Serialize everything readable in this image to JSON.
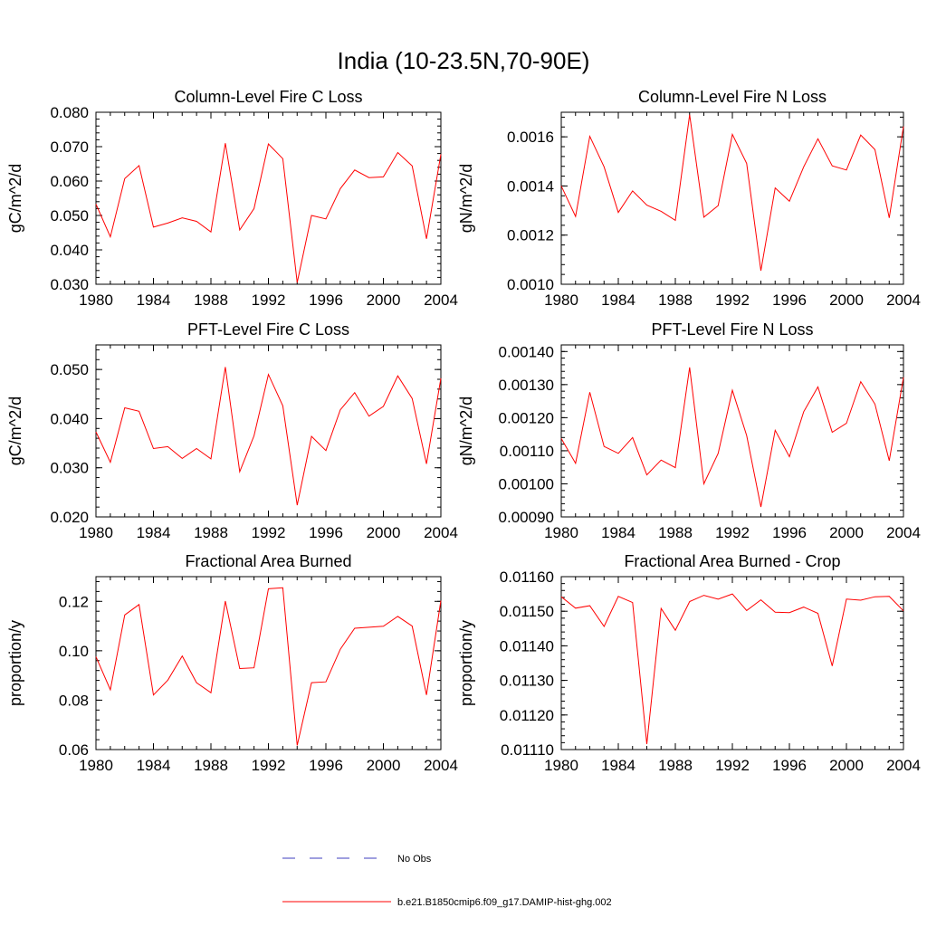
{
  "figure": {
    "title": "India (10-23.5N,70-90E)"
  },
  "legend": {
    "entries": [
      {
        "label": "No Obs",
        "color": "#3f3fbf",
        "style": "dashed"
      },
      {
        "label": "b.e21.B1850cmip6.f09_g17.DAMIP-hist-ghg.002",
        "color": "#ff0000",
        "style": "solid"
      }
    ]
  },
  "colors": {
    "series": "#ff0000",
    "axes": "#000000",
    "background": "#ffffff"
  },
  "chart_data": [
    {
      "type": "line",
      "title": "Column-Level Fire C Loss",
      "xlabel": "",
      "ylabel": "gC/m^2/d",
      "xlim": [
        1980,
        2004
      ],
      "ylim": [
        0.03,
        0.08
      ],
      "xticks": [
        1980,
        1984,
        1988,
        1992,
        1996,
        2000,
        2004
      ],
      "xtick_labels": [
        "1980",
        "1984",
        "1988",
        "1992",
        "1996",
        "2000",
        "2004"
      ],
      "yticks": [
        0.03,
        0.04,
        0.05,
        0.06,
        0.07,
        0.08
      ],
      "ytick_labels": [
        "0.030",
        "0.040",
        "0.050",
        "0.060",
        "0.070",
        "0.080"
      ],
      "grid": false,
      "x": [
        1980,
        1981,
        1982,
        1983,
        1984,
        1985,
        1986,
        1987,
        1988,
        1989,
        1990,
        1991,
        1992,
        1993,
        1994,
        1995,
        1996,
        1997,
        1998,
        1999,
        2000,
        2001,
        2002,
        2003,
        2004
      ],
      "series": [
        {
          "values": [
            0.0533,
            0.0438,
            0.0607,
            0.0645,
            0.0466,
            0.0478,
            0.0493,
            0.0483,
            0.0452,
            0.071,
            0.0458,
            0.052,
            0.0708,
            0.0665,
            0.0305,
            0.05,
            0.049,
            0.0578,
            0.0632,
            0.061,
            0.0612,
            0.0683,
            0.0644,
            0.0432,
            0.0678
          ]
        }
      ]
    },
    {
      "type": "line",
      "title": "Column-Level Fire N Loss",
      "xlabel": "",
      "ylabel": "gN/m^2/d",
      "xlim": [
        1980,
        2004
      ],
      "ylim": [
        0.001,
        0.0017
      ],
      "xticks": [
        1980,
        1984,
        1988,
        1992,
        1996,
        2000,
        2004
      ],
      "xtick_labels": [
        "1980",
        "1984",
        "1988",
        "1992",
        "1996",
        "2000",
        "2004"
      ],
      "yticks": [
        0.001,
        0.0012,
        0.0014,
        0.0016
      ],
      "ytick_labels": [
        "0.0010",
        "0.0012",
        "0.0014",
        "0.0016"
      ],
      "grid": false,
      "x": [
        1980,
        1981,
        1982,
        1983,
        1984,
        1985,
        1986,
        1987,
        1988,
        1989,
        1990,
        1991,
        1992,
        1993,
        1994,
        1995,
        1996,
        1997,
        1998,
        1999,
        2000,
        2001,
        2002,
        2003,
        2004
      ],
      "series": [
        {
          "values": [
            0.0014,
            0.001276,
            0.001602,
            0.001478,
            0.001292,
            0.00138,
            0.001322,
            0.001297,
            0.00126,
            0.00169,
            0.001273,
            0.00132,
            0.00161,
            0.001492,
            0.001055,
            0.001392,
            0.001338,
            0.001478,
            0.001592,
            0.001482,
            0.001465,
            0.001607,
            0.001548,
            0.00127,
            0.001642
          ]
        }
      ]
    },
    {
      "type": "line",
      "title": "PFT-Level Fire C Loss",
      "xlabel": "",
      "ylabel": "gC/m^2/d",
      "xlim": [
        1980,
        2004
      ],
      "ylim": [
        0.02,
        0.055
      ],
      "xticks": [
        1980,
        1984,
        1988,
        1992,
        1996,
        2000,
        2004
      ],
      "xtick_labels": [
        "1980",
        "1984",
        "1988",
        "1992",
        "1996",
        "2000",
        "2004"
      ],
      "yticks": [
        0.02,
        0.03,
        0.04,
        0.05
      ],
      "ytick_labels": [
        "0.020",
        "0.030",
        "0.040",
        "0.050"
      ],
      "grid": false,
      "x": [
        1980,
        1981,
        1982,
        1983,
        1984,
        1985,
        1986,
        1987,
        1988,
        1989,
        1990,
        1991,
        1992,
        1993,
        1994,
        1995,
        1996,
        1997,
        1998,
        1999,
        2000,
        2001,
        2002,
        2003,
        2004
      ],
      "series": [
        {
          "values": [
            0.0373,
            0.0311,
            0.0422,
            0.0415,
            0.0339,
            0.0343,
            0.0319,
            0.0339,
            0.0318,
            0.0505,
            0.0292,
            0.0365,
            0.049,
            0.0426,
            0.0224,
            0.0364,
            0.0335,
            0.0418,
            0.0453,
            0.0405,
            0.0425,
            0.0487,
            0.0441,
            0.0308,
            0.0482
          ]
        }
      ]
    },
    {
      "type": "line",
      "title": "PFT-Level Fire N Loss",
      "xlabel": "",
      "ylabel": "gN/m^2/d",
      "xlim": [
        1980,
        2004
      ],
      "ylim": [
        0.0009,
        0.00142
      ],
      "xticks": [
        1980,
        1984,
        1988,
        1992,
        1996,
        2000,
        2004
      ],
      "xtick_labels": [
        "1980",
        "1984",
        "1988",
        "1992",
        "1996",
        "2000",
        "2004"
      ],
      "yticks": [
        0.0009,
        0.001,
        0.0011,
        0.0012,
        0.0013,
        0.0014
      ],
      "ytick_labels": [
        "0.00090",
        "0.00100",
        "0.00110",
        "0.00120",
        "0.00130",
        "0.00140"
      ],
      "grid": false,
      "x": [
        1980,
        1981,
        1982,
        1983,
        1984,
        1985,
        1986,
        1987,
        1988,
        1989,
        1990,
        1991,
        1992,
        1993,
        1994,
        1995,
        1996,
        1997,
        1998,
        1999,
        2000,
        2001,
        2002,
        2003,
        2004
      ],
      "series": [
        {
          "values": [
            0.001137,
            0.001062,
            0.001277,
            0.001113,
            0.001092,
            0.00114,
            0.001027,
            0.001072,
            0.001049,
            0.001352,
            0.001,
            0.001092,
            0.001283,
            0.001146,
            0.00093,
            0.001162,
            0.001082,
            0.001218,
            0.001293,
            0.001156,
            0.001183,
            0.001309,
            0.001241,
            0.00107,
            0.001322
          ]
        }
      ]
    },
    {
      "type": "line",
      "title": "Fractional Area Burned",
      "xlabel": "",
      "ylabel": "proportion/y",
      "xlim": [
        1980,
        2004
      ],
      "ylim": [
        0.06,
        0.13
      ],
      "xticks": [
        1980,
        1984,
        1988,
        1992,
        1996,
        2000,
        2004
      ],
      "xtick_labels": [
        "1980",
        "1984",
        "1988",
        "1992",
        "1996",
        "2000",
        "2004"
      ],
      "yticks": [
        0.06,
        0.08,
        0.1,
        0.12
      ],
      "ytick_labels": [
        "0.06",
        "0.08",
        "0.10",
        "0.12"
      ],
      "grid": false,
      "x": [
        1980,
        1981,
        1982,
        1983,
        1984,
        1985,
        1986,
        1987,
        1988,
        1989,
        1990,
        1991,
        1992,
        1993,
        1994,
        1995,
        1996,
        1997,
        1998,
        1999,
        2000,
        2001,
        2002,
        2003,
        2004
      ],
      "series": [
        {
          "values": [
            0.0976,
            0.0842,
            0.1145,
            0.1187,
            0.0821,
            0.0881,
            0.0979,
            0.0871,
            0.083,
            0.1201,
            0.0928,
            0.0931,
            0.1251,
            0.1255,
            0.0617,
            0.0871,
            0.0874,
            0.1006,
            0.1091,
            0.1095,
            0.1099,
            0.1139,
            0.11,
            0.0821,
            0.1203
          ]
        }
      ]
    },
    {
      "type": "line",
      "title": "Fractional Area Burned - Crop",
      "xlabel": "",
      "ylabel": "proportion/y",
      "xlim": [
        1980,
        2004
      ],
      "ylim": [
        0.0111,
        0.0116
      ],
      "xticks": [
        1980,
        1984,
        1988,
        1992,
        1996,
        2000,
        2004
      ],
      "xtick_labels": [
        "1980",
        "1984",
        "1988",
        "1992",
        "1996",
        "2000",
        "2004"
      ],
      "yticks": [
        0.0111,
        0.0112,
        0.0113,
        0.0114,
        0.0115,
        0.0116
      ],
      "ytick_labels": [
        "0.01110",
        "0.01120",
        "0.01130",
        "0.01140",
        "0.01150",
        "0.01160"
      ],
      "grid": false,
      "x": [
        1980,
        1981,
        1982,
        1983,
        1984,
        1985,
        1986,
        1987,
        1988,
        1989,
        1990,
        1991,
        1992,
        1993,
        1994,
        1995,
        1996,
        1997,
        1998,
        1999,
        2000,
        2001,
        2002,
        2003,
        2004
      ],
      "series": [
        {
          "values": [
            0.011542,
            0.011509,
            0.011516,
            0.011456,
            0.011543,
            0.011525,
            0.011116,
            0.011508,
            0.011445,
            0.011528,
            0.011546,
            0.011535,
            0.01155,
            0.011502,
            0.011533,
            0.011497,
            0.011496,
            0.011512,
            0.011494,
            0.011342,
            0.011535,
            0.011532,
            0.011542,
            0.011543,
            0.011501
          ]
        }
      ]
    }
  ]
}
